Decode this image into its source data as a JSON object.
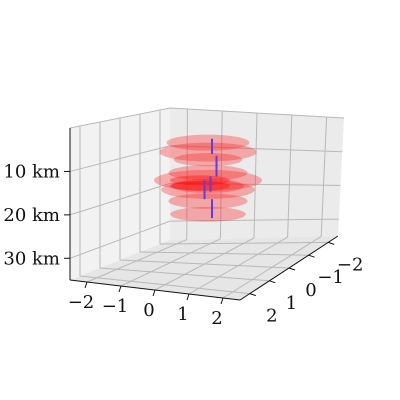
{
  "chart_data": {
    "type": "scatter",
    "projection": "3d",
    "x_ticks": [
      "−2",
      "−1",
      "0",
      "1",
      "2"
    ],
    "y_ticks": [
      "2",
      "1",
      "0",
      "−1",
      "−2"
    ],
    "z_ticks": [
      "10 km",
      "20 km",
      "30 km"
    ],
    "xlim": [
      -2,
      2
    ],
    "ylim": [
      -2,
      2
    ],
    "zlim": [
      35,
      0
    ],
    "grid": true,
    "ellipse_color": "#ff0000",
    "segment_color": "#5b3fe0",
    "layers": [
      {
        "depth_km": 6.0,
        "size": 1.15
      },
      {
        "depth_km": 8.5,
        "size": 1.35
      },
      {
        "depth_km": 10.5,
        "size": 0.95
      },
      {
        "depth_km": 14.0,
        "size": 1.1
      },
      {
        "depth_km": 16.0,
        "size": 1.5
      },
      {
        "depth_km": 17.5,
        "size": 1.0
      },
      {
        "depth_km": 18.5,
        "size": 1.3
      },
      {
        "depth_km": 21.5,
        "size": 1.1
      },
      {
        "depth_km": 25.0,
        "size": 1.05
      }
    ],
    "segments": [
      {
        "x": 0.0,
        "z_top": 5.0,
        "z_bottom": 9.0
      },
      {
        "x": 0.15,
        "z_top": 9.5,
        "z_bottom": 15.0
      },
      {
        "x": -0.25,
        "z_top": 16.0,
        "z_bottom": 21.0
      },
      {
        "x": -0.05,
        "z_top": 15.0,
        "z_bottom": 19.0
      },
      {
        "x": 0.0,
        "z_top": 21.0,
        "z_bottom": 26.0
      }
    ]
  }
}
